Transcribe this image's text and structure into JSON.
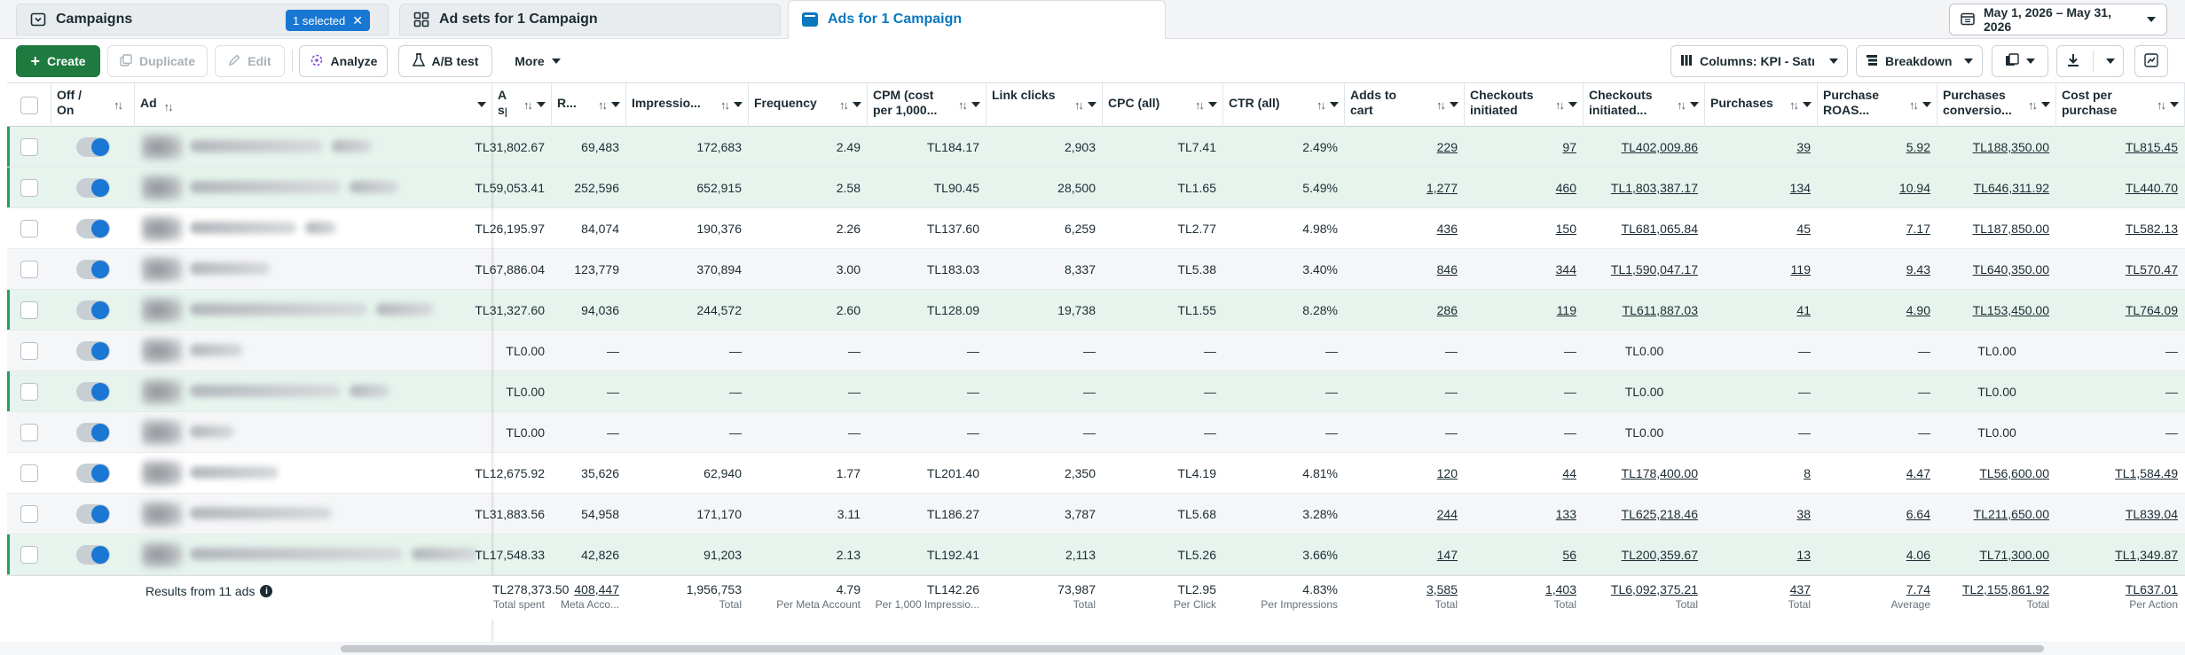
{
  "tabs": {
    "campaigns": "Campaigns",
    "selected_badge": "1 selected",
    "adsets": "Ad sets for 1 Campaign",
    "ads": "Ads for 1 Campaign"
  },
  "date_range": "May 1, 2026 – May 31, 2026",
  "toolbar": {
    "create": "Create",
    "duplicate": "Duplicate",
    "edit": "Edit",
    "analyze": "Analyze",
    "ab_test": "A/B test",
    "more": "More",
    "columns": "Columns: KPI - Satış",
    "breakdown": "Breakdown"
  },
  "columns": [
    {
      "key": "amount",
      "label": "Amount spent"
    },
    {
      "key": "reach",
      "label": "R..."
    },
    {
      "key": "impressions",
      "label": "Impressio..."
    },
    {
      "key": "frequency",
      "label": "Frequency"
    },
    {
      "key": "cpm",
      "label": "CPM (cost per 1,000..."
    },
    {
      "key": "link_clicks",
      "label": "Link clicks"
    },
    {
      "key": "cpc",
      "label": "CPC (all)"
    },
    {
      "key": "ctr",
      "label": "CTR (all)"
    },
    {
      "key": "adds_to_cart",
      "label": "Adds to cart"
    },
    {
      "key": "checkouts",
      "label": "Checkouts initiated"
    },
    {
      "key": "checkouts_value",
      "label": "Checkouts initiated..."
    },
    {
      "key": "purchases",
      "label": "Purchases"
    },
    {
      "key": "roas",
      "label": "Purchase ROAS..."
    },
    {
      "key": "conv_value",
      "label": "Purchases conversio..."
    },
    {
      "key": "cpp",
      "label": "Cost per purchase"
    }
  ],
  "header": {
    "off_on": "Off / On",
    "ad": "Ad"
  },
  "rows": [
    {
      "cells": [
        "TL31,802.67",
        "69,483",
        "172,683",
        "2.49",
        "TL184.17",
        "2,903",
        "TL7.41",
        "2.49%",
        "229",
        "97",
        "TL402,009.86",
        "39",
        "5.92",
        "TL188,350.00",
        "TL815.45"
      ]
    },
    {
      "cells": [
        "TL59,053.41",
        "252,596",
        "652,915",
        "2.58",
        "TL90.45",
        "28,500",
        "TL1.65",
        "5.49%",
        "1,277",
        "460",
        "TL1,803,387.17",
        "134",
        "10.94",
        "TL646,311.92",
        "TL440.70"
      ]
    },
    {
      "cells": [
        "TL26,195.97",
        "84,074",
        "190,376",
        "2.26",
        "TL137.60",
        "6,259",
        "TL2.77",
        "4.98%",
        "436",
        "150",
        "TL681,065.84",
        "45",
        "7.17",
        "TL187,850.00",
        "TL582.13"
      ]
    },
    {
      "cells": [
        "TL67,886.04",
        "123,779",
        "370,894",
        "3.00",
        "TL183.03",
        "8,337",
        "TL5.38",
        "3.40%",
        "846",
        "344",
        "TL1,590,047.17",
        "119",
        "9.43",
        "TL640,350.00",
        "TL570.47"
      ]
    },
    {
      "cells": [
        "TL31,327.60",
        "94,036",
        "244,572",
        "2.60",
        "TL128.09",
        "19,738",
        "TL1.55",
        "8.28%",
        "286",
        "119",
        "TL611,887.03",
        "41",
        "4.90",
        "TL153,450.00",
        "TL764.09"
      ]
    },
    {
      "cells": [
        "TL0.00",
        "—",
        "—",
        "—",
        "—",
        "—",
        "—",
        "—",
        "—",
        "—",
        "TL0.00",
        "—",
        "—",
        "TL0.00",
        "—"
      ]
    },
    {
      "cells": [
        "TL0.00",
        "—",
        "—",
        "—",
        "—",
        "—",
        "—",
        "—",
        "—",
        "—",
        "TL0.00",
        "—",
        "—",
        "TL0.00",
        "—"
      ]
    },
    {
      "cells": [
        "TL0.00",
        "—",
        "—",
        "—",
        "—",
        "—",
        "—",
        "—",
        "—",
        "—",
        "TL0.00",
        "—",
        "—",
        "TL0.00",
        "—"
      ]
    },
    {
      "cells": [
        "TL12,675.92",
        "35,626",
        "62,940",
        "1.77",
        "TL201.40",
        "2,350",
        "TL4.19",
        "4.81%",
        "120",
        "44",
        "TL178,400.00",
        "8",
        "4.47",
        "TL56,600.00",
        "TL1,584.49"
      ]
    },
    {
      "cells": [
        "TL31,883.56",
        "54,958",
        "171,170",
        "3.11",
        "TL186.27",
        "3,787",
        "TL5.68",
        "3.28%",
        "244",
        "133",
        "TL625,218.46",
        "38",
        "6.64",
        "TL211,650.00",
        "TL839.04"
      ]
    },
    {
      "cells": [
        "TL17,548.33",
        "42,826",
        "91,203",
        "2.13",
        "TL192.41",
        "2,113",
        "TL5.26",
        "3.66%",
        "147",
        "56",
        "TL200,359.67",
        "13",
        "4.06",
        "TL71,300.00",
        "TL1,349.87"
      ]
    }
  ],
  "totals": {
    "label": "Results from 11 ads",
    "values": [
      "TL278,373.50",
      "408,447",
      "1,956,753",
      "4.79",
      "TL142.26",
      "73,987",
      "TL2.95",
      "4.83%",
      "3,585",
      "1,403",
      "TL6,092,375.21",
      "437",
      "7.74",
      "TL2,155,861.92",
      "TL637.01"
    ],
    "subs": [
      "Total spent",
      "Meta Acco...",
      "Total",
      "Per Meta Account",
      "Per 1,000 Impressio...",
      "Total",
      "Per Click",
      "Per Impressions",
      "Total",
      "Total",
      "Total",
      "Total",
      "Average",
      "Total",
      "Per Action"
    ]
  }
}
